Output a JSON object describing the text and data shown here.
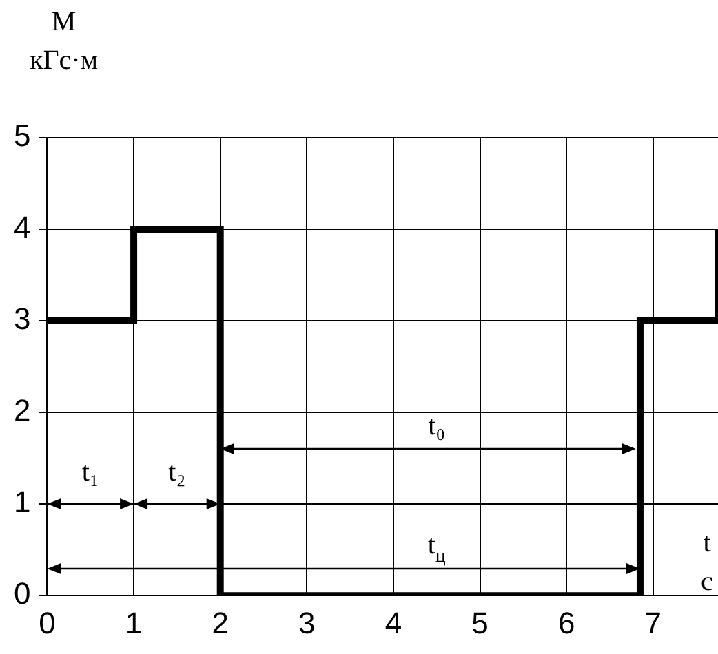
{
  "chart_data": {
    "type": "step",
    "ylabel": "M\nкГс·м",
    "xlabel": "t\nс",
    "x": [
      0,
      1,
      2,
      6.85,
      7.75
    ],
    "series": [
      {
        "color": "#000000",
        "values": [
          3,
          4,
          0,
          3,
          4
        ]
      }
    ],
    "xlim": [
      0,
      7.75
    ],
    "xticks": [
      0,
      1,
      2,
      3,
      4,
      5,
      6,
      7
    ],
    "ylim": [
      0,
      5
    ],
    "yticks": [
      0,
      1,
      2,
      3,
      4,
      5
    ],
    "grid": true,
    "legend": false,
    "annotations": [
      "t₁",
      "t₂",
      "t₀",
      "t$_{ц}$"
    ]
  }
}
